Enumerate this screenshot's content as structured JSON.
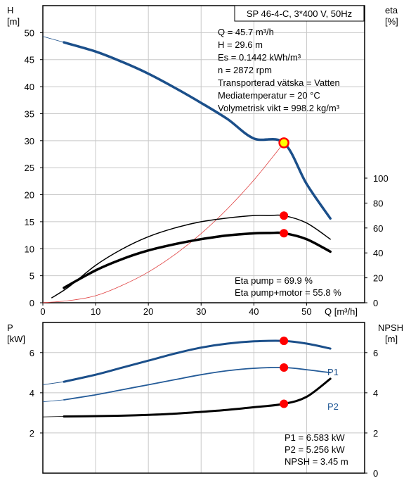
{
  "colors": {
    "head_curve": "#1b4f8a",
    "p1_curve": "#1b4f8a",
    "p2_curve": "#245b98",
    "eta_curve": "#000000",
    "npsh_curve": "#000000",
    "system_curve": "#e04040",
    "marker": "#ff0000",
    "duty_marker_fill": "#ffff00",
    "grid": "#c8c8c8"
  },
  "chart_data": [
    {
      "type": "line",
      "title": "SP 46-4-C, 3*400 V, 50Hz",
      "xlabel": "Q [m³/h]",
      "x_ticks": [
        "0",
        "10",
        "20",
        "30",
        "40",
        "50"
      ],
      "xlim": [
        0,
        61
      ],
      "left_axis": {
        "label_line1": "H",
        "label_line2": "[m]",
        "ylim": [
          0,
          55
        ],
        "ticks": [
          "0",
          "5",
          "10",
          "15",
          "20",
          "25",
          "30",
          "35",
          "40",
          "45",
          "50"
        ]
      },
      "right_axis": {
        "label_line1": "eta",
        "label_line2": "[%]",
        "ylim": [
          0,
          100
        ],
        "ticks": [
          "0",
          "20",
          "40",
          "60",
          "80",
          "100"
        ]
      },
      "info_lines": [
        "Q = 45.7 m³/h",
        "H = 29.6 m",
        "Es = 0.1442 kWh/m³",
        "n = 2872 rpm",
        "Transporterad vätska = Vatten",
        "Mediatemperatur = 20 °C",
        "Volymetrisk vikt = 998.2 kg/m³"
      ],
      "eta_lines": [
        "Eta pump = 69.9 %",
        "Eta pump+motor = 55.8 %"
      ],
      "series": [
        {
          "axis": "left",
          "style": "head",
          "x": [
            0,
            4,
            10,
            15,
            20,
            25,
            30,
            35,
            40,
            45.7,
            50,
            54.5
          ],
          "y": [
            49.3,
            48.2,
            46.5,
            44.6,
            42.4,
            39.8,
            37.0,
            34.0,
            30.4,
            29.6,
            22.0,
            15.6
          ]
        },
        {
          "axis": "left",
          "style": "system",
          "x": [
            0,
            5,
            10,
            15,
            20,
            25,
            30,
            35,
            40,
            45.7
          ],
          "y": [
            0,
            0.4,
            1.3,
            3.2,
            5.7,
            8.9,
            12.8,
            17.4,
            22.7,
            29.6
          ]
        },
        {
          "axis": "right",
          "style": "eta_thin",
          "x": [
            1.7,
            5,
            10,
            15,
            20,
            25,
            30,
            35,
            40,
            43,
            45.7,
            50,
            54.5
          ],
          "y": [
            4,
            13,
            30,
            43,
            53,
            60,
            65,
            68,
            70,
            70,
            69.9,
            64,
            51
          ]
        },
        {
          "axis": "right",
          "style": "eta_bold",
          "x": [
            4,
            10,
            15,
            20,
            25,
            30,
            35,
            40,
            43,
            45.7,
            50,
            54.5
          ],
          "y": [
            12,
            26,
            35,
            42,
            47,
            51,
            54,
            55.7,
            56,
            55.8,
            51,
            41
          ]
        }
      ],
      "markers": [
        {
          "axis": "left",
          "x": 45.7,
          "y": 29.6,
          "style": "duty"
        },
        {
          "axis": "right",
          "x": 45.7,
          "y": 69.9,
          "style": "point"
        },
        {
          "axis": "right",
          "x": 45.7,
          "y": 55.8,
          "style": "point"
        }
      ]
    },
    {
      "type": "line",
      "title": "",
      "xlim": [
        0,
        61
      ],
      "left_axis": {
        "label_line1": "P",
        "label_line2": "[kW]",
        "ylim": [
          0,
          7.5
        ],
        "ticks": [
          "2",
          "4",
          "6"
        ]
      },
      "right_axis": {
        "label_line1": "NPSH",
        "label_line2": "[m]",
        "ylim": [
          0,
          7.5
        ],
        "ticks": [
          "0",
          "2",
          "4",
          "6"
        ]
      },
      "info_lines": [
        "P1 = 6.583 kW",
        "P2 = 5.256 kW",
        "NPSH = 3.45 m"
      ],
      "series": [
        {
          "name": "P1",
          "axis": "left",
          "style": "p1",
          "x": [
            0,
            4,
            10,
            15,
            20,
            25,
            30,
            35,
            40,
            45.7,
            50,
            54.5
          ],
          "y": [
            4.4,
            4.55,
            4.9,
            5.25,
            5.6,
            5.95,
            6.25,
            6.45,
            6.56,
            6.583,
            6.45,
            6.2
          ]
        },
        {
          "name": "P2",
          "axis": "left",
          "style": "p2",
          "x": [
            0,
            4,
            10,
            15,
            20,
            25,
            30,
            35,
            40,
            45.7,
            50,
            54.5
          ],
          "y": [
            3.55,
            3.65,
            3.9,
            4.15,
            4.4,
            4.65,
            4.9,
            5.1,
            5.22,
            5.256,
            5.15,
            5.0
          ]
        },
        {
          "axis": "right",
          "style": "npsh",
          "x": [
            0,
            4,
            10,
            15,
            20,
            25,
            30,
            35,
            40,
            45.7,
            50,
            54.5
          ],
          "y": [
            2.8,
            2.82,
            2.84,
            2.86,
            2.9,
            2.96,
            3.05,
            3.15,
            3.28,
            3.45,
            3.8,
            4.7
          ]
        }
      ],
      "markers": [
        {
          "axis": "left",
          "x": 45.7,
          "y": 6.583,
          "style": "point"
        },
        {
          "axis": "left",
          "x": 45.7,
          "y": 5.256,
          "style": "point"
        },
        {
          "axis": "right",
          "x": 45.7,
          "y": 3.45,
          "style": "point"
        }
      ]
    }
  ]
}
